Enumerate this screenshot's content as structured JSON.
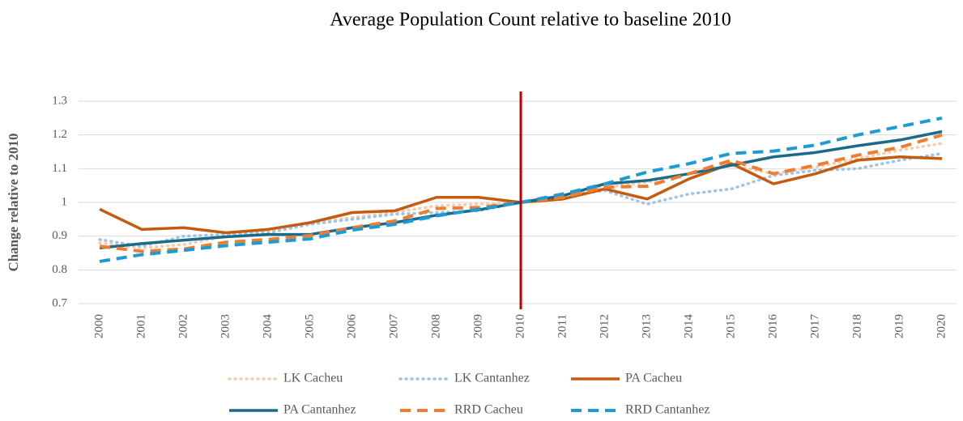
{
  "chart_data": {
    "type": "line",
    "title": "Average Population Count relative to baseline 2010",
    "y_label": "Change relative to 2010",
    "categories": [
      "2000",
      "2001",
      "2002",
      "2003",
      "2004",
      "2005",
      "2006",
      "2007",
      "2008",
      "2009",
      "2010",
      "2011",
      "2012",
      "2013",
      "2014",
      "2015",
      "2016",
      "2017",
      "2018",
      "2019",
      "2020"
    ],
    "ylim": [
      0.7,
      1.3
    ],
    "yticks": [
      0.7,
      0.8,
      0.9,
      1,
      1.1,
      1.2,
      1.3
    ],
    "grid": true,
    "legend": "bottom",
    "reference_line": {
      "category": "2010",
      "color": "#c00000"
    },
    "series": [
      {
        "name": "LK Cacheu",
        "color": "#f8cbad",
        "style": "dotted",
        "values": [
          0.88,
          0.865,
          0.875,
          0.9,
          0.915,
          0.94,
          0.955,
          0.97,
          0.99,
          0.995,
          1.0,
          1.02,
          1.045,
          1.06,
          1.085,
          1.11,
          1.085,
          1.105,
          1.13,
          1.155,
          1.175
        ]
      },
      {
        "name": "LK Cantanhez",
        "color": "#9dc3e6",
        "style": "dotted",
        "values": [
          0.89,
          0.87,
          0.9,
          0.905,
          0.91,
          0.935,
          0.95,
          0.965,
          0.97,
          0.975,
          1.0,
          1.02,
          1.035,
          0.995,
          1.025,
          1.04,
          1.08,
          1.095,
          1.1,
          1.125,
          1.145
        ]
      },
      {
        "name": "PA Cacheu",
        "color": "#c55a11",
        "style": "solid",
        "values": [
          0.98,
          0.92,
          0.925,
          0.91,
          0.92,
          0.94,
          0.97,
          0.975,
          1.015,
          1.015,
          1.0,
          1.01,
          1.04,
          1.01,
          1.07,
          1.115,
          1.055,
          1.085,
          1.125,
          1.135,
          1.13
        ]
      },
      {
        "name": "PA Cantanhez",
        "color": "#1b6a8a",
        "style": "solid",
        "values": [
          0.865,
          0.878,
          0.888,
          0.898,
          0.905,
          0.905,
          0.925,
          0.94,
          0.962,
          0.978,
          1.0,
          1.02,
          1.055,
          1.065,
          1.085,
          1.11,
          1.135,
          1.148,
          1.168,
          1.185,
          1.21
        ]
      },
      {
        "name": "RRD Cacheu",
        "color": "#ed7d31",
        "style": "dashed",
        "values": [
          0.87,
          0.855,
          0.862,
          0.882,
          0.89,
          0.902,
          0.925,
          0.945,
          0.982,
          0.985,
          1.0,
          1.015,
          1.045,
          1.048,
          1.085,
          1.125,
          1.085,
          1.11,
          1.14,
          1.163,
          1.2
        ]
      },
      {
        "name": "RRD Cantanhez",
        "color": "#1f9bd4",
        "style": "dashed",
        "values": [
          0.825,
          0.845,
          0.858,
          0.872,
          0.882,
          0.892,
          0.918,
          0.935,
          0.96,
          0.98,
          1.0,
          1.025,
          1.055,
          1.09,
          1.115,
          1.145,
          1.152,
          1.17,
          1.2,
          1.225,
          1.25
        ]
      }
    ]
  }
}
